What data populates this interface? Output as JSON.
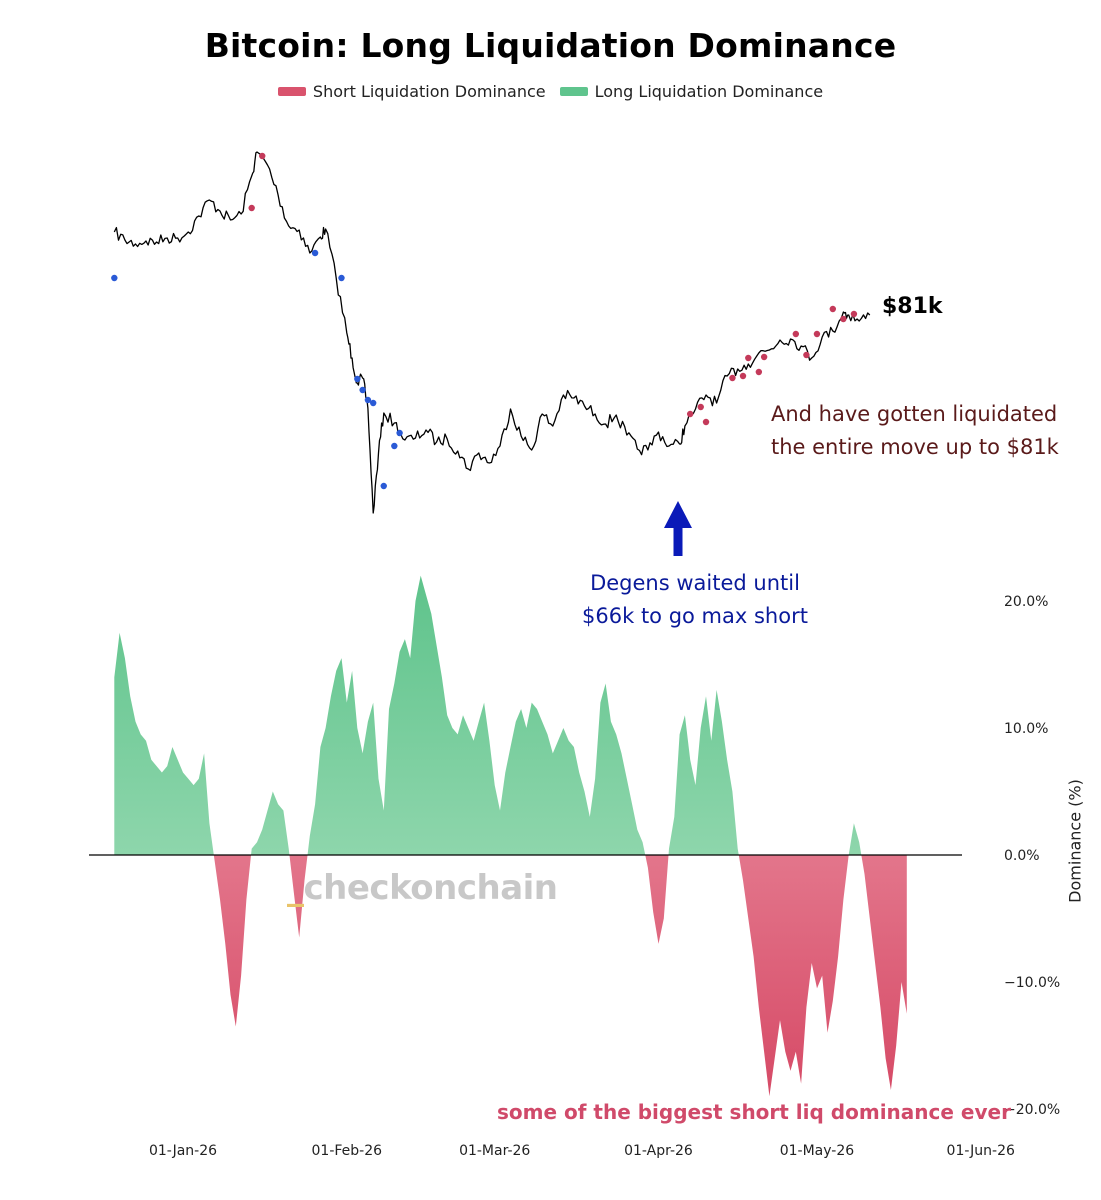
{
  "chart_data": {
    "title": "Bitcoin: Long Liquidation Dominance",
    "type": "area",
    "legend": {
      "placement": "top-center",
      "entries": [
        {
          "label": "Short Liquidation Dominance",
          "color": "#d9536d"
        },
        {
          "label": "Long Liquidation Dominance",
          "color": "#5fc48d"
        }
      ]
    },
    "x_axis": {
      "ticks": [
        "01-Jan-26",
        "01-Feb-26",
        "01-Mar-26",
        "01-Apr-26",
        "01-May-26",
        "01-Jun-26"
      ],
      "range": [
        "2025-12-19",
        "2026-06-01"
      ]
    },
    "y_axis_right": {
      "title": "Dominance (%)",
      "ticks": [
        "20.0%",
        "10.0%",
        "0.0%",
        "−10.0%",
        "−20.0%"
      ],
      "range": [
        -20,
        20
      ]
    },
    "price_series": {
      "color": "#000000",
      "points": [
        [
          "2025-12-19",
          88600
        ],
        [
          "2025-12-21",
          87800
        ],
        [
          "2025-12-23",
          87400
        ],
        [
          "2025-12-25",
          87700
        ],
        [
          "2025-12-27",
          87600
        ],
        [
          "2025-12-29",
          88000
        ],
        [
          "2025-12-31",
          88000
        ],
        [
          "2026-01-02",
          88600
        ],
        [
          "2026-01-04",
          90200
        ],
        [
          "2026-01-06",
          91800
        ],
        [
          "2026-01-08",
          90700
        ],
        [
          "2026-01-10",
          89800
        ],
        [
          "2026-01-12",
          90400
        ],
        [
          "2026-01-14",
          94200
        ],
        [
          "2026-01-15",
          96600
        ],
        [
          "2026-01-17",
          95300
        ],
        [
          "2026-01-19",
          92300
        ],
        [
          "2026-01-21",
          89200
        ],
        [
          "2026-01-23",
          88800
        ],
        [
          "2026-01-25",
          86500
        ],
        [
          "2026-01-27",
          88100
        ],
        [
          "2026-01-28",
          88900
        ],
        [
          "2026-01-30",
          84000
        ],
        [
          "2026-02-01",
          78500
        ],
        [
          "2026-02-02",
          76000
        ],
        [
          "2026-02-03",
          73500
        ],
        [
          "2026-02-04",
          74000
        ],
        [
          "2026-02-05",
          71000
        ],
        [
          "2026-02-06",
          60500
        ],
        [
          "2026-02-07",
          66500
        ],
        [
          "2026-02-08",
          70500
        ],
        [
          "2026-02-10",
          69500
        ],
        [
          "2026-02-12",
          67800
        ],
        [
          "2026-02-14",
          68000
        ],
        [
          "2026-02-16",
          68800
        ],
        [
          "2026-02-18",
          67600
        ],
        [
          "2026-02-20",
          67900
        ],
        [
          "2026-02-22",
          66700
        ],
        [
          "2026-02-24",
          64900
        ],
        [
          "2026-02-26",
          66500
        ],
        [
          "2026-02-28",
          65500
        ],
        [
          "2026-03-02",
          67200
        ],
        [
          "2026-03-04",
          70900
        ],
        [
          "2026-03-06",
          68200
        ],
        [
          "2026-03-08",
          66800
        ],
        [
          "2026-03-10",
          70400
        ],
        [
          "2026-03-12",
          69200
        ],
        [
          "2026-03-14",
          72300
        ],
        [
          "2026-03-16",
          72000
        ],
        [
          "2026-03-18",
          71200
        ],
        [
          "2026-03-20",
          70400
        ],
        [
          "2026-03-22",
          69400
        ],
        [
          "2026-03-24",
          70300
        ],
        [
          "2026-03-26",
          68300
        ],
        [
          "2026-03-28",
          66900
        ],
        [
          "2026-03-30",
          66800
        ],
        [
          "2026-04-01",
          68600
        ],
        [
          "2026-04-03",
          67200
        ],
        [
          "2026-04-05",
          67400
        ],
        [
          "2026-04-06",
          69200
        ],
        [
          "2026-04-08",
          70900
        ],
        [
          "2026-04-10",
          72300
        ],
        [
          "2026-04-12",
          71500
        ],
        [
          "2026-04-14",
          74200
        ],
        [
          "2026-04-16",
          74900
        ],
        [
          "2026-04-18",
          75400
        ],
        [
          "2026-04-20",
          76500
        ],
        [
          "2026-04-22",
          76800
        ],
        [
          "2026-04-24",
          77800
        ],
        [
          "2026-04-26",
          77900
        ],
        [
          "2026-04-28",
          77200
        ],
        [
          "2026-04-30",
          76000
        ],
        [
          "2026-05-02",
          78100
        ],
        [
          "2026-05-04",
          78700
        ],
        [
          "2026-05-06",
          80600
        ],
        [
          "2026-05-07",
          80300
        ],
        [
          "2026-05-09",
          79700
        ],
        [
          "2026-05-11",
          80300
        ]
      ],
      "short_liquidation_markers": [
        [
          "2026-01-14",
          91000
        ],
        [
          "2026-01-16",
          96200
        ],
        [
          "2026-04-07",
          70400
        ],
        [
          "2026-04-09",
          71100
        ],
        [
          "2026-04-10",
          69600
        ],
        [
          "2026-04-15",
          74000
        ],
        [
          "2026-04-17",
          74200
        ],
        [
          "2026-04-18",
          76000
        ],
        [
          "2026-04-20",
          74600
        ],
        [
          "2026-04-21",
          76100
        ],
        [
          "2026-04-27",
          78400
        ],
        [
          "2026-04-29",
          76300
        ],
        [
          "2026-05-01",
          78400
        ],
        [
          "2026-05-04",
          80900
        ],
        [
          "2026-05-06",
          79900
        ],
        [
          "2026-05-08",
          80400
        ]
      ],
      "long_liquidation_markers": [
        [
          "2025-12-19",
          84000
        ],
        [
          "2026-01-26",
          86500
        ],
        [
          "2026-01-31",
          84000
        ],
        [
          "2026-02-03",
          73900
        ],
        [
          "2026-02-04",
          72800
        ],
        [
          "2026-02-05",
          71800
        ],
        [
          "2026-02-06",
          71500
        ],
        [
          "2026-02-08",
          63200
        ],
        [
          "2026-02-10",
          67200
        ],
        [
          "2026-02-11",
          68500
        ]
      ]
    },
    "dominance_series": {
      "points": [
        [
          "2025-12-19",
          14
        ],
        [
          "2025-12-20",
          17.5
        ],
        [
          "2025-12-21",
          15.5
        ],
        [
          "2025-12-22",
          12.5
        ],
        [
          "2025-12-23",
          10.5
        ],
        [
          "2025-12-24",
          9.5
        ],
        [
          "2025-12-25",
          9
        ],
        [
          "2025-12-26",
          7.5
        ],
        [
          "2025-12-27",
          7
        ],
        [
          "2025-12-28",
          6.5
        ],
        [
          "2025-12-29",
          7
        ],
        [
          "2025-12-30",
          8.5
        ],
        [
          "2025-12-31",
          7.5
        ],
        [
          "2026-01-01",
          6.5
        ],
        [
          "2026-01-02",
          6
        ],
        [
          "2026-01-03",
          5.5
        ],
        [
          "2026-01-04",
          6
        ],
        [
          "2026-01-05",
          8
        ],
        [
          "2026-01-06",
          2.5
        ],
        [
          "2026-01-07",
          -0.5
        ],
        [
          "2026-01-08",
          -3.5
        ],
        [
          "2026-01-09",
          -7
        ],
        [
          "2026-01-10",
          -11
        ],
        [
          "2026-01-11",
          -13.5
        ],
        [
          "2026-01-12",
          -9.5
        ],
        [
          "2026-01-13",
          -3.5
        ],
        [
          "2026-01-14",
          0.5
        ],
        [
          "2026-01-15",
          1
        ],
        [
          "2026-01-16",
          2
        ],
        [
          "2026-01-17",
          3.5
        ],
        [
          "2026-01-18",
          5
        ],
        [
          "2026-01-19",
          4
        ],
        [
          "2026-01-20",
          3.5
        ],
        [
          "2026-01-21",
          0.5
        ],
        [
          "2026-01-22",
          -3
        ],
        [
          "2026-01-23",
          -6.5
        ],
        [
          "2026-01-24",
          -2
        ],
        [
          "2026-01-25",
          1.5
        ],
        [
          "2026-01-26",
          4
        ],
        [
          "2026-01-27",
          8.5
        ],
        [
          "2026-01-28",
          10
        ],
        [
          "2026-01-29",
          12.5
        ],
        [
          "2026-01-30",
          14.5
        ],
        [
          "2026-01-31",
          15.5
        ],
        [
          "2026-02-01",
          12
        ],
        [
          "2026-02-02",
          14.5
        ],
        [
          "2026-02-03",
          10
        ],
        [
          "2026-02-04",
          8
        ],
        [
          "2026-02-05",
          10.5
        ],
        [
          "2026-02-06",
          12
        ],
        [
          "2026-02-07",
          6
        ],
        [
          "2026-02-08",
          3.5
        ],
        [
          "2026-02-09",
          11.5
        ],
        [
          "2026-02-10",
          13.5
        ],
        [
          "2026-02-11",
          16
        ],
        [
          "2026-02-12",
          17
        ],
        [
          "2026-02-13",
          15.5
        ],
        [
          "2026-02-14",
          20
        ],
        [
          "2026-02-15",
          22
        ],
        [
          "2026-02-16",
          20.5
        ],
        [
          "2026-02-17",
          19
        ],
        [
          "2026-02-18",
          16.5
        ],
        [
          "2026-02-19",
          14
        ],
        [
          "2026-02-20",
          11
        ],
        [
          "2026-02-21",
          10
        ],
        [
          "2026-02-22",
          9.5
        ],
        [
          "2026-02-23",
          11
        ],
        [
          "2026-02-24",
          10
        ],
        [
          "2026-02-25",
          9
        ],
        [
          "2026-02-26",
          10.5
        ],
        [
          "2026-02-27",
          12
        ],
        [
          "2026-02-28",
          9
        ],
        [
          "2026-03-01",
          5.5
        ],
        [
          "2026-03-02",
          3.5
        ],
        [
          "2026-03-03",
          6.5
        ],
        [
          "2026-03-04",
          8.5
        ],
        [
          "2026-03-05",
          10.5
        ],
        [
          "2026-03-06",
          11.5
        ],
        [
          "2026-03-07",
          10
        ],
        [
          "2026-03-08",
          12
        ],
        [
          "2026-03-09",
          11.5
        ],
        [
          "2026-03-10",
          10.5
        ],
        [
          "2026-03-11",
          9.5
        ],
        [
          "2026-03-12",
          8
        ],
        [
          "2026-03-13",
          9
        ],
        [
          "2026-03-14",
          10
        ],
        [
          "2026-03-15",
          9
        ],
        [
          "2026-03-16",
          8.5
        ],
        [
          "2026-03-17",
          6.5
        ],
        [
          "2026-03-18",
          5
        ],
        [
          "2026-03-19",
          3
        ],
        [
          "2026-03-20",
          6
        ],
        [
          "2026-03-21",
          12
        ],
        [
          "2026-03-22",
          13.5
        ],
        [
          "2026-03-23",
          10.5
        ],
        [
          "2026-03-24",
          9.5
        ],
        [
          "2026-03-25",
          8
        ],
        [
          "2026-03-26",
          6
        ],
        [
          "2026-03-27",
          4
        ],
        [
          "2026-03-28",
          2
        ],
        [
          "2026-03-29",
          1
        ],
        [
          "2026-03-30",
          -1
        ],
        [
          "2026-03-31",
          -4.5
        ],
        [
          "2026-04-01",
          -7
        ],
        [
          "2026-04-02",
          -5
        ],
        [
          "2026-04-03",
          0.5
        ],
        [
          "2026-04-04",
          3
        ],
        [
          "2026-04-05",
          9.5
        ],
        [
          "2026-04-06",
          11
        ],
        [
          "2026-04-07",
          7.5
        ],
        [
          "2026-04-08",
          5.5
        ],
        [
          "2026-04-09",
          10
        ],
        [
          "2026-04-10",
          12.5
        ],
        [
          "2026-04-11",
          9
        ],
        [
          "2026-04-12",
          13
        ],
        [
          "2026-04-13",
          10.5
        ],
        [
          "2026-04-14",
          7.5
        ],
        [
          "2026-04-15",
          5
        ],
        [
          "2026-04-16",
          0.5
        ],
        [
          "2026-04-17",
          -2
        ],
        [
          "2026-04-18",
          -5
        ],
        [
          "2026-04-19",
          -8
        ],
        [
          "2026-04-20",
          -12
        ],
        [
          "2026-04-21",
          -15.5
        ],
        [
          "2026-04-22",
          -19
        ],
        [
          "2026-04-23",
          -16
        ],
        [
          "2026-04-24",
          -13
        ],
        [
          "2026-04-25",
          -15.5
        ],
        [
          "2026-04-26",
          -17
        ],
        [
          "2026-04-27",
          -15.5
        ],
        [
          "2026-04-28",
          -18
        ],
        [
          "2026-04-29",
          -12
        ],
        [
          "2026-04-30",
          -8.5
        ],
        [
          "2026-05-01",
          -10.5
        ],
        [
          "2026-05-02",
          -9.5
        ],
        [
          "2026-05-03",
          -14
        ],
        [
          "2026-05-04",
          -11.5
        ],
        [
          "2026-05-05",
          -8
        ],
        [
          "2026-05-06",
          -3.5
        ],
        [
          "2026-05-07",
          0
        ],
        [
          "2026-05-08",
          2.5
        ],
        [
          "2026-05-09",
          1
        ],
        [
          "2026-05-10",
          -1.5
        ],
        [
          "2026-05-11",
          -5
        ],
        [
          "2026-05-12",
          -8.5
        ],
        [
          "2026-05-13",
          -12
        ],
        [
          "2026-05-14",
          -16
        ],
        [
          "2026-05-15",
          -18.5
        ],
        [
          "2026-05-16",
          -15
        ],
        [
          "2026-05-17",
          -10
        ],
        [
          "2026-05-18",
          -12.5
        ]
      ]
    },
    "annotations": {
      "price_label": "$81k",
      "liquidated": [
        "And have gotten liquidated",
        "the entire move up to $81k"
      ],
      "degens": [
        "Degens waited until",
        "$66k to go max short"
      ],
      "biggest": "some of the biggest short liq dominance ever"
    },
    "watermark": {
      "prefix": "_",
      "text": "checkonchain"
    },
    "colors": {
      "short": "#d9536d",
      "long": "#5fc48d",
      "price_line": "#000000",
      "long_marker": "#2a5ad6",
      "short_marker": "#c43a5a",
      "arrow": "#0a1ab8"
    },
    "grid": false
  }
}
